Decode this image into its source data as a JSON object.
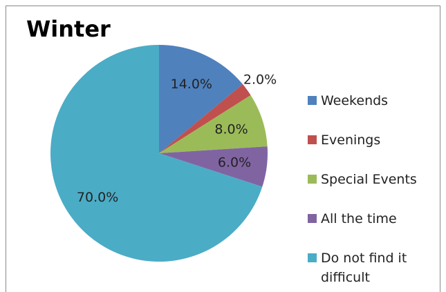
{
  "chart_data": {
    "type": "pie",
    "title": "Winter",
    "categories": [
      "Weekends",
      "Evenings",
      "Special Events",
      "All the time",
      "Do not find it difficult"
    ],
    "values": [
      14,
      2,
      8,
      6,
      70
    ],
    "value_labels": [
      "14.0%",
      "2.0%",
      "8.0%",
      "6.0%",
      "70.0%"
    ],
    "colors": [
      "#4f81bd",
      "#c0504d",
      "#9bbb59",
      "#8064a2",
      "#4bacc6"
    ],
    "legend": "right"
  }
}
